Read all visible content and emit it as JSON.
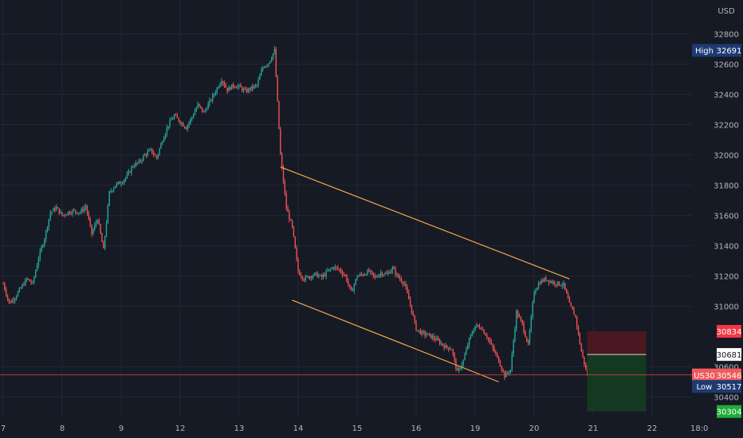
{
  "chart_data": {
    "type": "candlestick",
    "symbol": "US30",
    "currency": "USD",
    "colors": {
      "background": "#161a25",
      "grid": "#222632",
      "up": "#26a69a",
      "down": "#ef5350",
      "trendline": "#f6a94a",
      "last_price_line": "#e04848",
      "stop_zone": "#4a1820",
      "target_zone": "#143820",
      "high_badge": "#1e3a72",
      "low_badge": "#1e3a72",
      "stop_badge": "#f23645",
      "target_badge": "#22ab3a",
      "current_badge": "#f05a5a"
    },
    "y_axis": {
      "min": 30250,
      "max": 32950,
      "ticks": [
        32800,
        32600,
        32400,
        32200,
        32000,
        31800,
        31600,
        31400,
        31200,
        31000,
        30600,
        30400
      ],
      "tick_labels": [
        "32800",
        "32600",
        "32400",
        "32200",
        "32000",
        "31800",
        "31600",
        "31400",
        "31200",
        "31000",
        "30600",
        "30400"
      ]
    },
    "x_axis": {
      "ticks": [
        {
          "label": "7",
          "i": 0
        },
        {
          "label": "8",
          "i": 10
        },
        {
          "label": "9",
          "i": 20
        },
        {
          "label": "12",
          "i": 30
        },
        {
          "label": "13",
          "i": 40
        },
        {
          "label": "14",
          "i": 50
        },
        {
          "label": "15",
          "i": 60
        },
        {
          "label": "16",
          "i": 70
        },
        {
          "label": "19",
          "i": 80
        },
        {
          "label": "20",
          "i": 90
        },
        {
          "label": "21",
          "i": 100
        },
        {
          "label": "22",
          "i": 110
        },
        {
          "label": "18:0",
          "i": 118
        }
      ],
      "x_count": 122
    },
    "price_path": [
      [
        0,
        31150
      ],
      [
        1,
        31020
      ],
      [
        2,
        31060
      ],
      [
        3,
        31120
      ],
      [
        4,
        31180
      ],
      [
        5,
        31150
      ],
      [
        6,
        31320
      ],
      [
        7,
        31450
      ],
      [
        8,
        31620
      ],
      [
        9,
        31650
      ],
      [
        10,
        31600
      ],
      [
        11,
        31620
      ],
      [
        12,
        31630
      ],
      [
        13,
        31620
      ],
      [
        14,
        31660
      ],
      [
        15,
        31480
      ],
      [
        16,
        31580
      ],
      [
        17,
        31370
      ],
      [
        18,
        31750
      ],
      [
        19,
        31800
      ],
      [
        20,
        31820
      ],
      [
        21,
        31860
      ],
      [
        22,
        31930
      ],
      [
        23,
        31950
      ],
      [
        24,
        32000
      ],
      [
        25,
        32030
      ],
      [
        26,
        31980
      ],
      [
        27,
        32100
      ],
      [
        28,
        32200
      ],
      [
        29,
        32260
      ],
      [
        30,
        32220
      ],
      [
        31,
        32180
      ],
      [
        32,
        32250
      ],
      [
        33,
        32330
      ],
      [
        34,
        32280
      ],
      [
        35,
        32350
      ],
      [
        36,
        32420
      ],
      [
        37,
        32500
      ],
      [
        38,
        32430
      ],
      [
        39,
        32460
      ],
      [
        40,
        32450
      ],
      [
        41,
        32420
      ],
      [
        42,
        32440
      ],
      [
        43,
        32460
      ],
      [
        44,
        32580
      ],
      [
        45,
        32610
      ],
      [
        46,
        32690
      ],
      [
        47,
        32000
      ],
      [
        48,
        31650
      ],
      [
        49,
        31520
      ],
      [
        50,
        31230
      ],
      [
        51,
        31180
      ],
      [
        52,
        31200
      ],
      [
        53,
        31210
      ],
      [
        54,
        31190
      ],
      [
        55,
        31230
      ],
      [
        56,
        31260
      ],
      [
        57,
        31240
      ],
      [
        58,
        31200
      ],
      [
        59,
        31090
      ],
      [
        60,
        31200
      ],
      [
        61,
        31210
      ],
      [
        62,
        31230
      ],
      [
        63,
        31190
      ],
      [
        64,
        31220
      ],
      [
        65,
        31210
      ],
      [
        66,
        31250
      ],
      [
        67,
        31190
      ],
      [
        68,
        31150
      ],
      [
        69,
        31010
      ],
      [
        70,
        30850
      ],
      [
        71,
        30820
      ],
      [
        72,
        30810
      ],
      [
        73,
        30790
      ],
      [
        74,
        30760
      ],
      [
        75,
        30730
      ],
      [
        76,
        30720
      ],
      [
        77,
        30560
      ],
      [
        78,
        30640
      ],
      [
        79,
        30780
      ],
      [
        80,
        30870
      ],
      [
        81,
        30860
      ],
      [
        82,
        30800
      ],
      [
        83,
        30720
      ],
      [
        84,
        30640
      ],
      [
        85,
        30540
      ],
      [
        86,
        30580
      ],
      [
        87,
        30960
      ],
      [
        88,
        30880
      ],
      [
        89,
        30740
      ],
      [
        90,
        31100
      ],
      [
        91,
        31160
      ],
      [
        92,
        31180
      ],
      [
        93,
        31160
      ],
      [
        94,
        31150
      ],
      [
        95,
        31140
      ],
      [
        96,
        31010
      ],
      [
        97,
        30930
      ],
      [
        98,
        30700
      ],
      [
        99,
        30546
      ]
    ],
    "trendlines": [
      {
        "name": "upper-trendline",
        "from": {
          "i": 47,
          "y": 31920
        },
        "to": {
          "i": 96,
          "y": 31180
        }
      },
      {
        "name": "lower-trendline",
        "from": {
          "i": 49,
          "y": 31040
        },
        "to": {
          "i": 84,
          "y": 30500
        }
      }
    ],
    "position": {
      "start_i": 99,
      "end_i": 109,
      "entry": 30681,
      "stop": 30834,
      "target": 30304
    },
    "last_price": 30546,
    "badges": {
      "high": {
        "label": "High",
        "value": "32691",
        "price": 32691
      },
      "low": {
        "label": "Low",
        "value": "30517",
        "price": 30470
      },
      "stop": {
        "value": "30834",
        "price": 30834
      },
      "entry": {
        "value": "30681",
        "price": 30681
      },
      "current": {
        "label": "US30",
        "value": "30546",
        "price": 30546
      },
      "target": {
        "value": "30304",
        "price": 30304
      }
    }
  }
}
